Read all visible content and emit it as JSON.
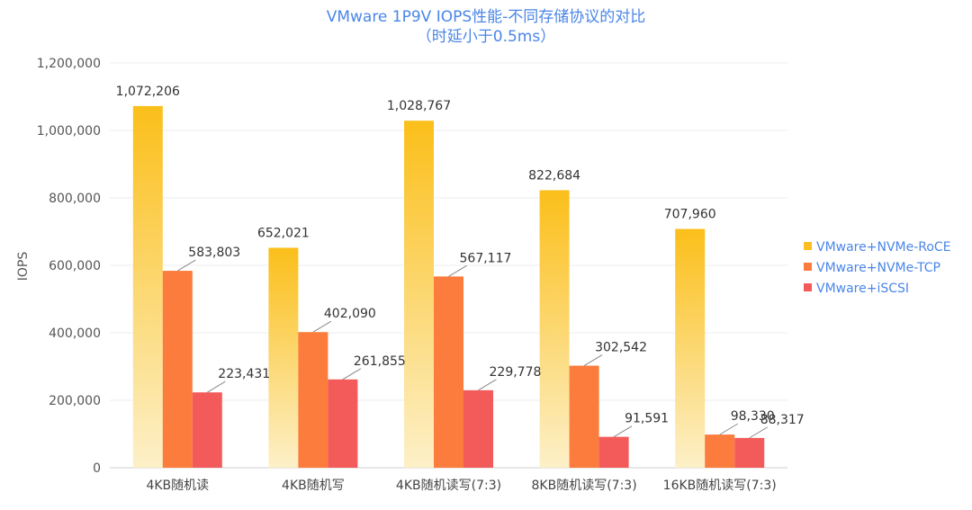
{
  "chart_data": {
    "type": "bar",
    "title": "VMware 1P9V IOPS性能-不同存储协议的对比",
    "subtitle": "（时延小于0.5ms）",
    "xlabel": "",
    "ylabel": "IOPS",
    "ylim": [
      0,
      1200000
    ],
    "yticks": [
      "0",
      "200,000",
      "400,000",
      "600,000",
      "800,000",
      "1,000,000",
      "1,200,000"
    ],
    "grid": true,
    "legend_position": "right",
    "categories": [
      "4KB随机读",
      "4KB随机写",
      "4KB随机读写(7:3)",
      "8KB随机读写(7:3)",
      "16KB随机读写(7:3)"
    ],
    "series": [
      {
        "name": "VMware+NVMe-RoCE",
        "color": "#fbbf24",
        "values": [
          1072206,
          652021,
          1028767,
          822684,
          707960
        ],
        "labels": [
          "1,072,206",
          "652,021",
          "1,028,767",
          "822,684",
          "707,960"
        ]
      },
      {
        "name": "VMware+NVMe-TCP",
        "color": "#fb7c3c",
        "values": [
          583803,
          402090,
          567117,
          302542,
          98330
        ],
        "labels": [
          "583,803",
          "402,090",
          "567,117",
          "302,542",
          "98,330"
        ]
      },
      {
        "name": "VMware+iSCSI",
        "color": "#f35b5b",
        "values": [
          223431,
          261855,
          229778,
          91591,
          88317
        ],
        "labels": [
          "223,431",
          "261,855",
          "229,778",
          "91,591",
          "88,317"
        ]
      }
    ]
  }
}
